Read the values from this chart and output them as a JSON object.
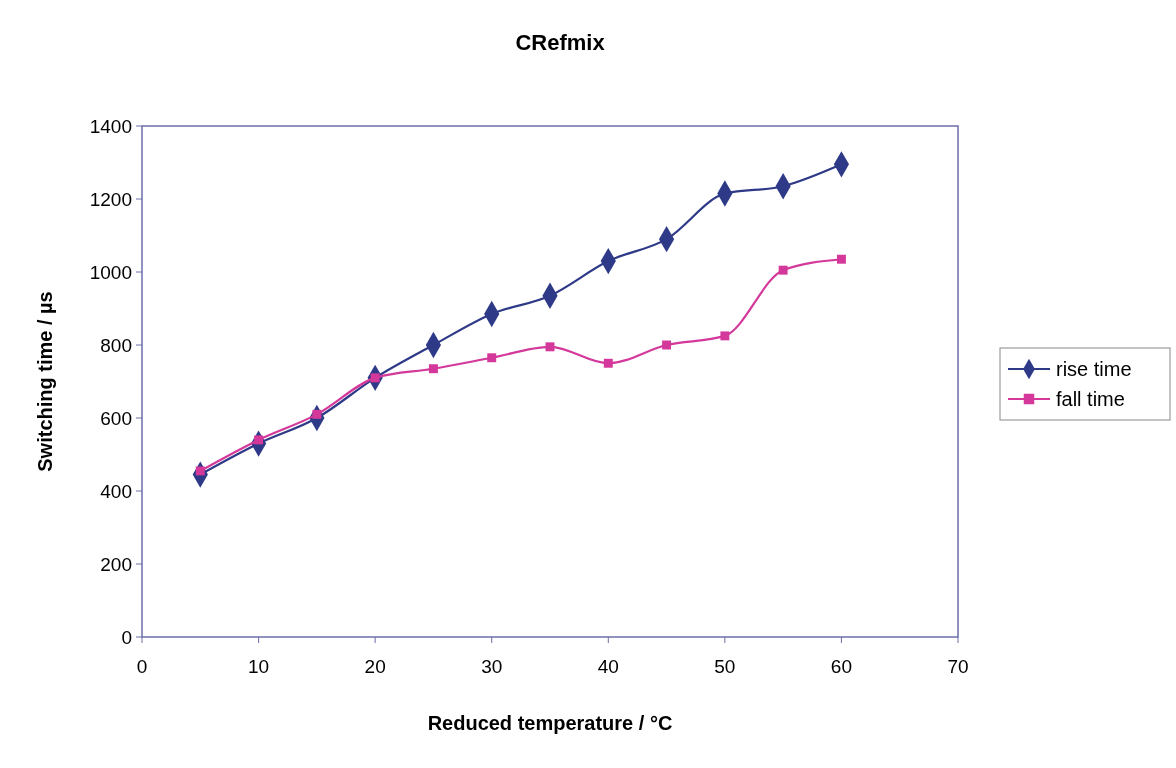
{
  "chart_data": {
    "type": "line",
    "title": "CRefmix",
    "xlabel": "Reduced temperature / °C",
    "ylabel": "Switching time / µs",
    "x": [
      5,
      10,
      15,
      20,
      25,
      30,
      35,
      40,
      45,
      50,
      55,
      60
    ],
    "series": [
      {
        "name": "rise time",
        "color": "#2e3a87",
        "marker": "diamond",
        "values": [
          445,
          530,
          600,
          710,
          800,
          885,
          935,
          1030,
          1090,
          1215,
          1235,
          1295
        ]
      },
      {
        "name": "fall time",
        "color": "#d4389a",
        "marker": "square",
        "values": [
          455,
          540,
          610,
          710,
          735,
          765,
          795,
          750,
          800,
          825,
          1005,
          1035
        ]
      }
    ],
    "xlim": [
      0,
      70
    ],
    "xticks": [
      0,
      10,
      20,
      30,
      40,
      50,
      60,
      70
    ],
    "ylim": [
      0,
      1400
    ],
    "yticks": [
      0,
      200,
      400,
      600,
      800,
      1000,
      1200,
      1400
    ],
    "grid": false,
    "legend": "right",
    "line_style": "solid"
  }
}
